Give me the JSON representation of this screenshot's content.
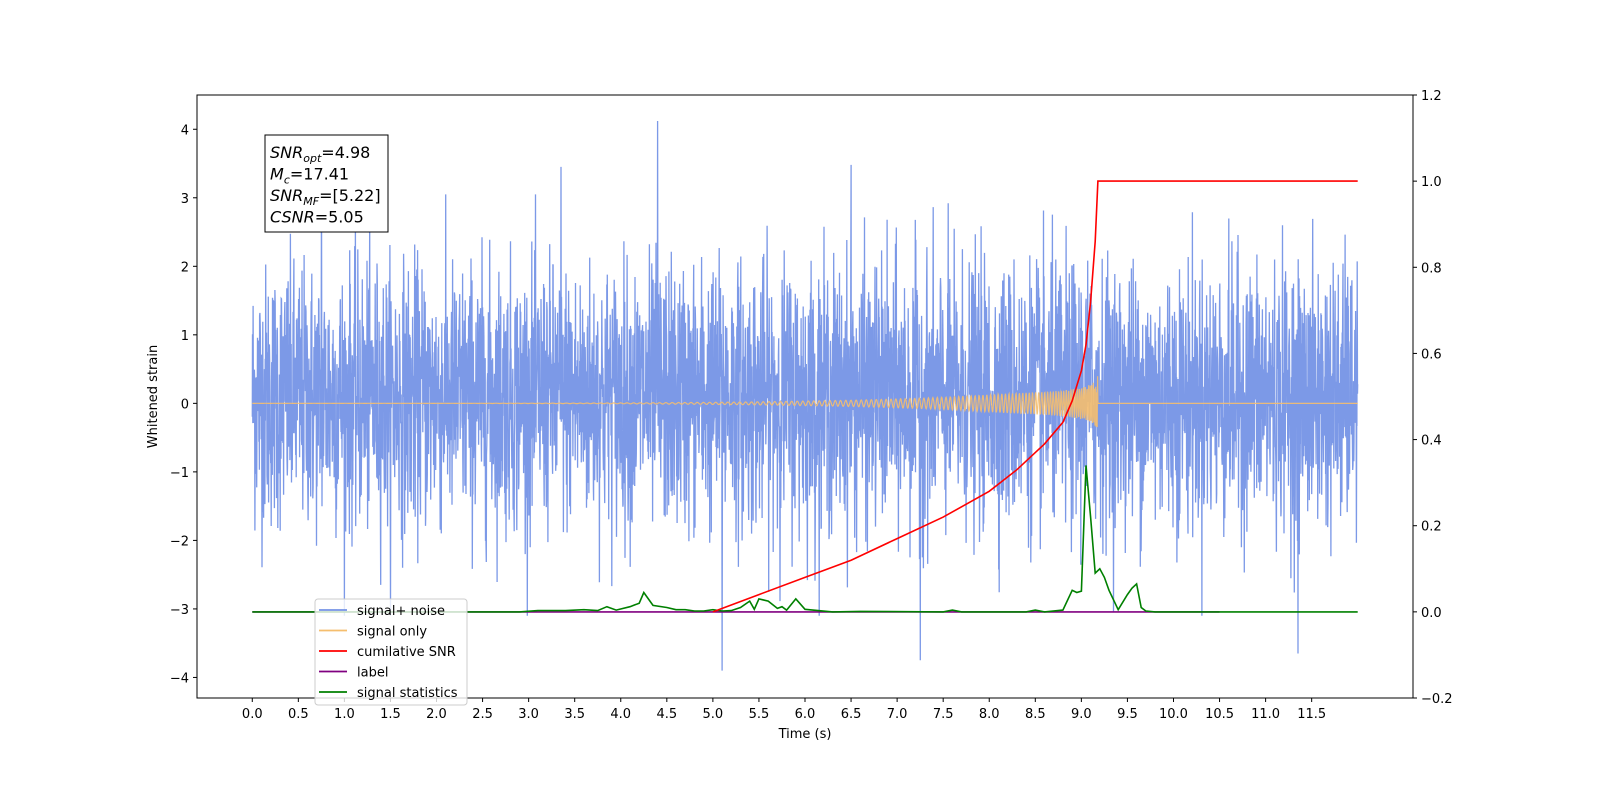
{
  "chart_data": {
    "type": "line",
    "title": "",
    "xlabel": "Time (s)",
    "ylabel": "Whitened strain",
    "xlim": [
      -0.6,
      12.6
    ],
    "ylim": [
      -4.3,
      4.5
    ],
    "y2lim": [
      -0.2,
      1.2
    ],
    "x_ticks": [
      0.0,
      0.5,
      1.0,
      1.5,
      2.0,
      2.5,
      3.0,
      3.5,
      4.0,
      4.5,
      5.0,
      5.5,
      6.0,
      6.5,
      7.0,
      7.5,
      8.0,
      8.5,
      9.0,
      9.5,
      10.0,
      10.5,
      11.0,
      11.5
    ],
    "x_tick_labels": [
      "0.0",
      "0.5",
      "1.0",
      "1.5",
      "2.0",
      "2.5",
      "3.0",
      "3.5",
      "4.0",
      "4.5",
      "5.0",
      "5.5",
      "6.0",
      "6.5",
      "7.0",
      "7.5",
      "8.0",
      "8.5",
      "9.0",
      "9.5",
      "10.0",
      "10.5",
      "11.0",
      "11.5"
    ],
    "y_ticks": [
      -4,
      -3,
      -2,
      -1,
      0,
      1,
      2,
      3,
      4
    ],
    "y_tick_labels": [
      "−4",
      "−3",
      "−2",
      "−1",
      "0",
      "1",
      "2",
      "3",
      "4"
    ],
    "y2_ticks": [
      -0.2,
      0.0,
      0.2,
      0.4,
      0.6,
      0.8,
      1.0,
      1.2
    ],
    "y2_tick_labels": [
      "−0.2",
      "0.0",
      "0.2",
      "0.4",
      "0.6",
      "0.8",
      "1.0",
      "1.2"
    ],
    "grid": false,
    "legend_position": "lower-left",
    "series": [
      {
        "name": "signal+ noise",
        "axis": "left",
        "color": "#7593e6",
        "description_values": "dense white noise between about -2.5 and 3 with spikes",
        "x_range": [
          0.0,
          12.0
        ],
        "notable_peaks": [
          [
            4.4,
            4.12
          ],
          [
            0.75,
            3.3
          ],
          [
            3.35,
            3.45
          ],
          [
            6.5,
            3.48
          ],
          [
            5.1,
            -3.9
          ],
          [
            7.25,
            -3.75
          ],
          [
            11.35,
            -3.65
          ]
        ]
      },
      {
        "name": "signal only",
        "axis": "left",
        "color": "#f5be6e",
        "chirp_start": 0.0,
        "chirp_merger": 9.18,
        "chirp_end": 12.0,
        "max_amplitude": 0.95
      },
      {
        "name": "cumilative SNR",
        "axis": "right",
        "color": "#ff0000",
        "x": [
          5.0,
          5.5,
          6.0,
          6.5,
          7.0,
          7.5,
          8.0,
          8.3,
          8.6,
          8.8,
          8.9,
          9.0,
          9.05,
          9.1,
          9.15,
          9.18,
          12.0
        ],
        "values": [
          0.0,
          0.04,
          0.08,
          0.12,
          0.17,
          0.22,
          0.28,
          0.33,
          0.39,
          0.44,
          0.49,
          0.56,
          0.62,
          0.72,
          0.86,
          1.0,
          1.0
        ]
      },
      {
        "name": "label",
        "axis": "right",
        "color": "#800080",
        "x": [
          0.0,
          10.5
        ],
        "values": [
          0.0,
          0.0
        ]
      },
      {
        "name": "signal statistics",
        "axis": "right",
        "color": "#008000",
        "x": [
          0.0,
          2.9,
          3.1,
          3.4,
          3.6,
          3.75,
          3.85,
          3.95,
          4.1,
          4.2,
          4.25,
          4.35,
          4.5,
          4.6,
          4.7,
          4.8,
          4.9,
          5.0,
          5.1,
          5.2,
          5.3,
          5.4,
          5.45,
          5.5,
          5.6,
          5.7,
          5.75,
          5.8,
          5.9,
          6.0,
          6.3,
          6.6,
          7.5,
          7.6,
          7.7,
          8.4,
          8.5,
          8.6,
          8.8,
          8.9,
          8.95,
          9.0,
          9.05,
          9.1,
          9.15,
          9.2,
          9.25,
          9.3,
          9.4,
          9.5,
          9.55,
          9.6,
          9.65,
          9.7,
          9.8,
          12.0
        ],
        "values": [
          0.0,
          0.0,
          0.003,
          0.003,
          0.005,
          0.003,
          0.012,
          0.004,
          0.012,
          0.02,
          0.045,
          0.015,
          0.01,
          0.005,
          0.005,
          0.002,
          0.002,
          0.005,
          0.002,
          0.003,
          0.01,
          0.025,
          0.006,
          0.03,
          0.025,
          0.008,
          0.012,
          0.004,
          0.03,
          0.006,
          0.0,
          0.001,
          0.0,
          0.004,
          0.0,
          0.0,
          0.004,
          0.0,
          0.004,
          0.05,
          0.045,
          0.048,
          0.34,
          0.22,
          0.09,
          0.1,
          0.08,
          0.05,
          0.005,
          0.04,
          0.055,
          0.065,
          0.01,
          0.002,
          0.0,
          0.0
        ]
      }
    ],
    "annotation": {
      "lines": [
        {
          "base": "SNR",
          "sub": "opt",
          "rest": "=4.98"
        },
        {
          "base": "M",
          "sub": "c",
          "rest": "=17.41"
        },
        {
          "base": "SNR",
          "sub": "MF",
          "rest": "=[5.22]"
        },
        {
          "base": "CSNR",
          "sub": "",
          "rest": "=5.05"
        }
      ]
    }
  }
}
